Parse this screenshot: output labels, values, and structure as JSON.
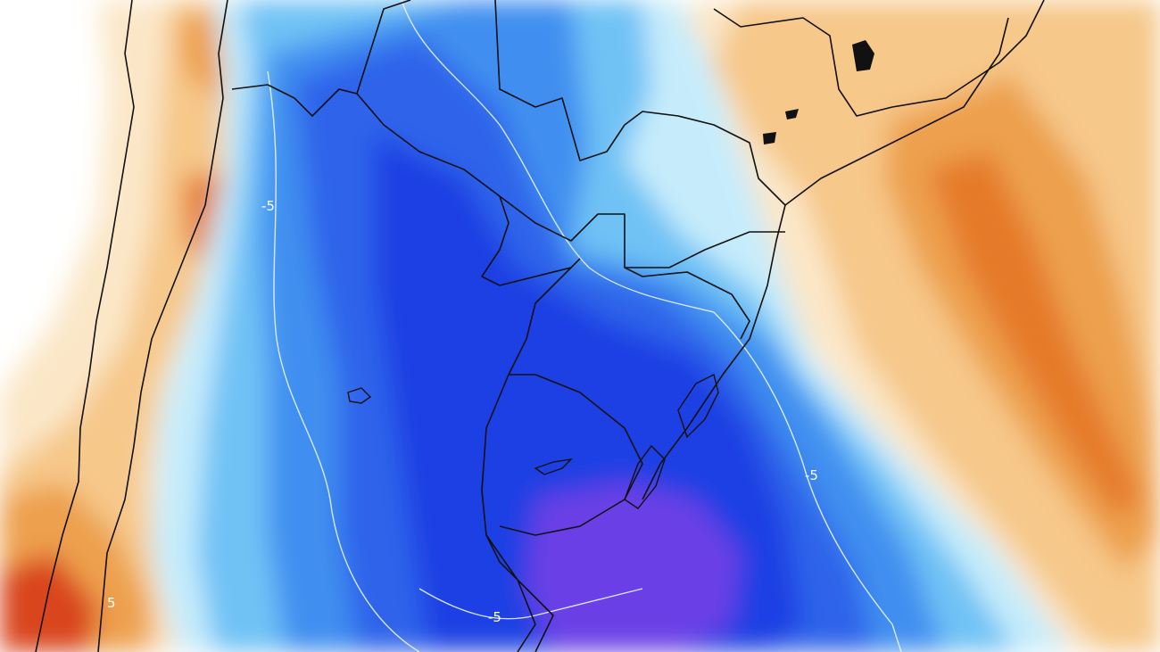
{
  "map": {
    "contour_labels": [
      {
        "id": "label-west",
        "text": "-5"
      },
      {
        "id": "label-east",
        "text": "-5"
      },
      {
        "id": "label-south",
        "text": "-5"
      },
      {
        "id": "label-southwest",
        "text": "5"
      }
    ],
    "palette": {
      "deep_violet": "#6a3fe6",
      "deep_blue": "#1f3fe3",
      "royal_blue": "#2f63ea",
      "mid_blue": "#3f8ff0",
      "sky_blue": "#6fc2f5",
      "pale_blue": "#c6ecfb",
      "neutral": "#ffffff",
      "pale_orange": "#fbe7c8",
      "light_orange": "#f6c88a",
      "orange": "#eda04e",
      "dark_orange": "#e57a2a",
      "red": "#d9451d",
      "contour_line": "#e8f4ff",
      "border_line": "#111111"
    }
  }
}
